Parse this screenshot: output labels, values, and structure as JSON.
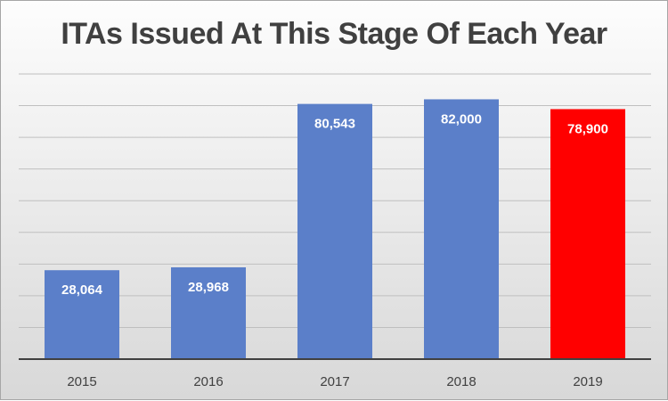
{
  "chart_data": {
    "type": "bar",
    "title": "ITAs Issued At This Stage Of Each Year",
    "categories": [
      "2015",
      "2016",
      "2017",
      "2018",
      "2019"
    ],
    "values": [
      28064,
      28968,
      80543,
      82000,
      78900
    ],
    "value_labels": [
      "28,064",
      "28,968",
      "80,543",
      "82,000",
      "78,900"
    ],
    "ylim": [
      0,
      90000
    ],
    "grid": true,
    "legend": "none",
    "colors": {
      "default_bar": "#5b7fc9",
      "highlight_bar": "#ff0000",
      "gridline": "#bfbfbf",
      "axis": "#404040"
    },
    "highlight_index": 4
  }
}
